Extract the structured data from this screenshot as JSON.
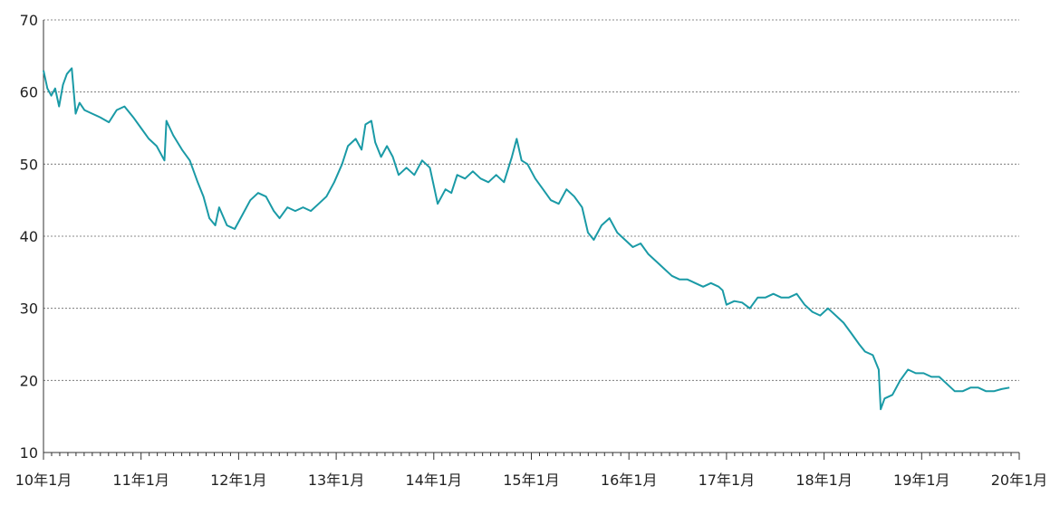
{
  "chart_data": {
    "type": "line",
    "title": "",
    "xlabel": "",
    "ylabel": "",
    "ylim": [
      10,
      70
    ],
    "y_ticks": [
      10,
      20,
      30,
      40,
      50,
      60,
      70
    ],
    "y_tick_labels": [
      "10",
      "20",
      "30",
      "40",
      "50",
      "60",
      "70"
    ],
    "grid": "horizontal dashed",
    "line_color": "#1a9aa6",
    "x_tick_labels": [
      "10年1月",
      "11年1月",
      "12年1月",
      "13年1月",
      "14年1月",
      "15年1月",
      "16年1月",
      "17年1月",
      "18年1月",
      "19年1月",
      "20年1月"
    ],
    "x_minor_ticks_per_year": 12,
    "x_range_years": [
      2010,
      2020
    ],
    "series": [
      {
        "points": [
          [
            2010.0,
            63.0
          ],
          [
            2010.04,
            60.5
          ],
          [
            2010.08,
            59.5
          ],
          [
            2010.12,
            60.5
          ],
          [
            2010.16,
            58.0
          ],
          [
            2010.2,
            61.0
          ],
          [
            2010.24,
            62.5
          ],
          [
            2010.29,
            63.3
          ],
          [
            2010.33,
            57.0
          ],
          [
            2010.37,
            58.5
          ],
          [
            2010.42,
            57.5
          ],
          [
            2010.5,
            57.0
          ],
          [
            2010.58,
            56.5
          ],
          [
            2010.67,
            55.8
          ],
          [
            2010.75,
            57.5
          ],
          [
            2010.83,
            58.0
          ],
          [
            2010.92,
            56.5
          ],
          [
            2011.0,
            55.0
          ],
          [
            2011.08,
            53.5
          ],
          [
            2011.16,
            52.5
          ],
          [
            2011.24,
            50.5
          ],
          [
            2011.26,
            56.0
          ],
          [
            2011.33,
            54.0
          ],
          [
            2011.42,
            52.0
          ],
          [
            2011.5,
            50.5
          ],
          [
            2011.58,
            47.5
          ],
          [
            2011.64,
            45.5
          ],
          [
            2011.7,
            42.5
          ],
          [
            2011.76,
            41.5
          ],
          [
            2011.8,
            44.0
          ],
          [
            2011.88,
            41.5
          ],
          [
            2011.96,
            41.0
          ],
          [
            2012.04,
            43.0
          ],
          [
            2012.12,
            45.0
          ],
          [
            2012.2,
            46.0
          ],
          [
            2012.28,
            45.5
          ],
          [
            2012.36,
            43.5
          ],
          [
            2012.42,
            42.5
          ],
          [
            2012.5,
            44.0
          ],
          [
            2012.58,
            43.5
          ],
          [
            2012.66,
            44.0
          ],
          [
            2012.74,
            43.5
          ],
          [
            2012.82,
            44.5
          ],
          [
            2012.9,
            45.5
          ],
          [
            2012.98,
            47.5
          ],
          [
            2013.06,
            50.0
          ],
          [
            2013.12,
            52.5
          ],
          [
            2013.2,
            53.5
          ],
          [
            2013.26,
            52.0
          ],
          [
            2013.3,
            55.5
          ],
          [
            2013.36,
            56.0
          ],
          [
            2013.4,
            53.0
          ],
          [
            2013.46,
            51.0
          ],
          [
            2013.52,
            52.5
          ],
          [
            2013.58,
            51.0
          ],
          [
            2013.64,
            48.5
          ],
          [
            2013.72,
            49.5
          ],
          [
            2013.8,
            48.5
          ],
          [
            2013.88,
            50.5
          ],
          [
            2013.96,
            49.5
          ],
          [
            2014.04,
            44.5
          ],
          [
            2014.12,
            46.5
          ],
          [
            2014.18,
            46.0
          ],
          [
            2014.24,
            48.5
          ],
          [
            2014.32,
            48.0
          ],
          [
            2014.4,
            49.0
          ],
          [
            2014.48,
            48.0
          ],
          [
            2014.56,
            47.5
          ],
          [
            2014.64,
            48.5
          ],
          [
            2014.72,
            47.5
          ],
          [
            2014.8,
            51.0
          ],
          [
            2014.85,
            53.5
          ],
          [
            2014.9,
            50.5
          ],
          [
            2014.96,
            50.0
          ],
          [
            2015.04,
            48.0
          ],
          [
            2015.12,
            46.5
          ],
          [
            2015.2,
            45.0
          ],
          [
            2015.28,
            44.5
          ],
          [
            2015.36,
            46.5
          ],
          [
            2015.44,
            45.5
          ],
          [
            2015.52,
            44.0
          ],
          [
            2015.58,
            40.5
          ],
          [
            2015.64,
            39.5
          ],
          [
            2015.72,
            41.5
          ],
          [
            2015.8,
            42.5
          ],
          [
            2015.88,
            40.5
          ],
          [
            2015.96,
            39.5
          ],
          [
            2016.04,
            38.5
          ],
          [
            2016.12,
            39.0
          ],
          [
            2016.2,
            37.5
          ],
          [
            2016.28,
            36.5
          ],
          [
            2016.36,
            35.5
          ],
          [
            2016.44,
            34.5
          ],
          [
            2016.52,
            34.0
          ],
          [
            2016.6,
            34.0
          ],
          [
            2016.68,
            33.5
          ],
          [
            2016.76,
            33.0
          ],
          [
            2016.84,
            33.5
          ],
          [
            2016.92,
            33.0
          ],
          [
            2016.96,
            32.5
          ],
          [
            2017.0,
            30.5
          ],
          [
            2017.08,
            31.0
          ],
          [
            2017.16,
            30.8
          ],
          [
            2017.24,
            30.0
          ],
          [
            2017.32,
            31.5
          ],
          [
            2017.4,
            31.5
          ],
          [
            2017.48,
            32.0
          ],
          [
            2017.56,
            31.5
          ],
          [
            2017.64,
            31.5
          ],
          [
            2017.72,
            32.0
          ],
          [
            2017.8,
            30.5
          ],
          [
            2017.88,
            29.5
          ],
          [
            2017.96,
            29.0
          ],
          [
            2018.04,
            30.0
          ],
          [
            2018.12,
            29.0
          ],
          [
            2018.2,
            28.0
          ],
          [
            2018.28,
            26.5
          ],
          [
            2018.36,
            25.0
          ],
          [
            2018.42,
            24.0
          ],
          [
            2018.5,
            23.5
          ],
          [
            2018.56,
            21.5
          ],
          [
            2018.58,
            16.0
          ],
          [
            2018.62,
            17.5
          ],
          [
            2018.7,
            18.0
          ],
          [
            2018.78,
            20.0
          ],
          [
            2018.86,
            21.5
          ],
          [
            2018.94,
            21.0
          ],
          [
            2019.02,
            21.0
          ],
          [
            2019.1,
            20.5
          ],
          [
            2019.18,
            20.5
          ],
          [
            2019.26,
            19.5
          ],
          [
            2019.34,
            18.5
          ],
          [
            2019.42,
            18.5
          ],
          [
            2019.5,
            19.0
          ],
          [
            2019.58,
            19.0
          ],
          [
            2019.66,
            18.5
          ],
          [
            2019.74,
            18.5
          ],
          [
            2019.82,
            18.8
          ],
          [
            2019.9,
            19.0
          ]
        ]
      }
    ]
  }
}
